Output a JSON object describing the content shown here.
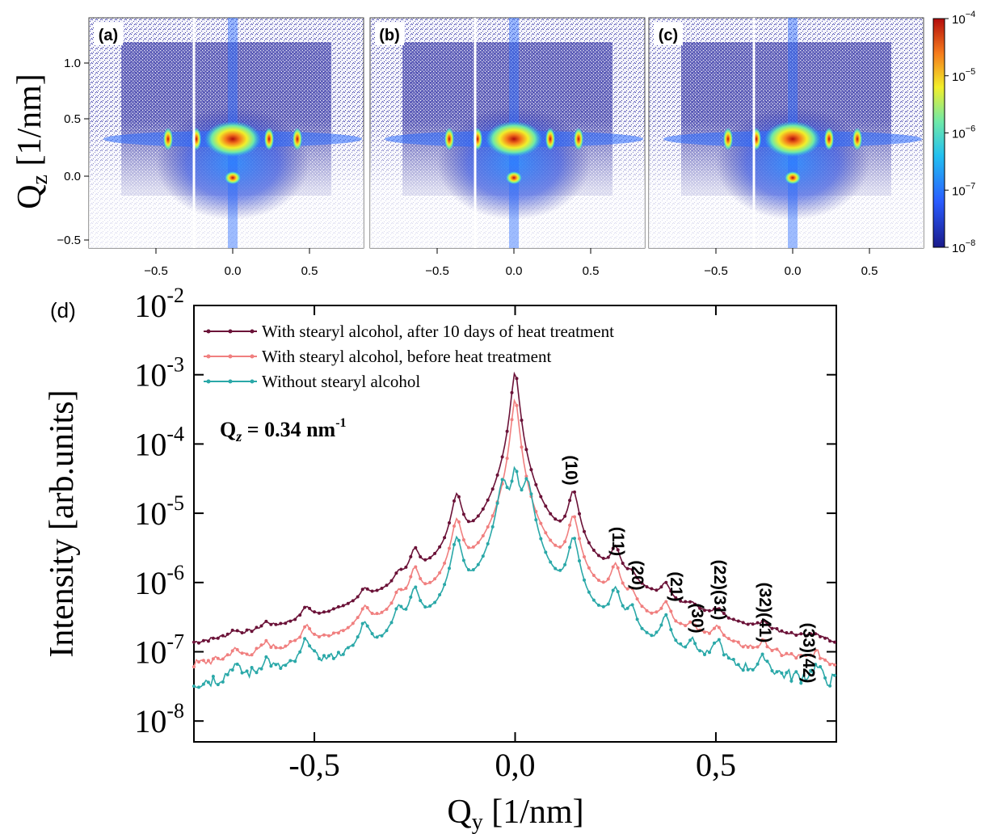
{
  "figure": {
    "maps": [
      {
        "label": "(a)"
      },
      {
        "label": "(b)"
      },
      {
        "label": "(c)"
      }
    ],
    "map_axes": {
      "ylabel_main": "Q",
      "ylabel_sub": "z",
      "ylabel_unit": " [1/nm]",
      "y_ticks": [
        "1.0",
        "0.5",
        "0.0",
        "−0.5"
      ],
      "x_ticks": [
        "−0.5",
        "0.0",
        "0.5"
      ]
    },
    "colorbar": {
      "scale": "log",
      "range": [
        1e-08,
        0.0001
      ],
      "ticks": [
        {
          "base": "10",
          "exp": "−4"
        },
        {
          "base": "10",
          "exp": "−5"
        },
        {
          "base": "10",
          "exp": "−6"
        },
        {
          "base": "10",
          "exp": "−7"
        },
        {
          "base": "10",
          "exp": "−8"
        }
      ],
      "colors": [
        "#1a1a8a",
        "#2a5cff",
        "#22c0f0",
        "#6fe9a8",
        "#f2ef2a",
        "#f57a1c",
        "#b30c0c"
      ]
    },
    "panel_d_label": "(d)"
  },
  "chart_data": {
    "type": "line",
    "xlabel_main": "Q",
    "xlabel_sub": "y",
    "xlabel_unit": " [1/nm]",
    "ylabel": "Intensity [arb.units]",
    "xlim": [
      -0.8,
      0.8
    ],
    "ylim": [
      5e-09,
      0.01
    ],
    "yscale": "log",
    "x_ticks": [
      "-0,5",
      "0,0",
      "0,5"
    ],
    "y_ticks": [
      {
        "base": "10",
        "exp": "-2"
      },
      {
        "base": "10",
        "exp": "-3"
      },
      {
        "base": "10",
        "exp": "-4"
      },
      {
        "base": "10",
        "exp": "-5"
      },
      {
        "base": "10",
        "exp": "-6"
      },
      {
        "base": "10",
        "exp": "-7"
      },
      {
        "base": "10",
        "exp": "-8"
      }
    ],
    "annotation": {
      "main": "Q",
      "sub": "z",
      "rest": " = 0.34 nm",
      "sup": "-1"
    },
    "legend_position": "top-left",
    "peak_labels": [
      "(10)",
      "(11)",
      "(20)",
      "(21)",
      "(30)",
      "(22)(31)",
      "(32)(41)",
      "(33)(42)"
    ],
    "series": [
      {
        "name": "With stearyl alcohol, after 10 days of heat treatment",
        "color": "#6b1238",
        "peaks": [
          [
            0.0,
            0.0011
          ],
          [
            0.145,
            1.8e-05
          ],
          [
            -0.145,
            1.6e-05
          ],
          [
            0.25,
            2e-06
          ],
          [
            -0.25,
            1.8e-06
          ],
          [
            0.29,
            4e-07
          ],
          [
            -0.29,
            4e-07
          ],
          [
            0.375,
            4e-07
          ],
          [
            -0.375,
            2.5e-07
          ],
          [
            0.44,
            9e-08
          ],
          [
            0.505,
            1e-07
          ],
          [
            -0.52,
            1.5e-07
          ],
          [
            0.62,
            6e-08
          ],
          [
            -0.62,
            5e-08
          ],
          [
            0.75,
            3.5e-08
          ],
          [
            -0.7,
            3e-08
          ]
        ]
      },
      {
        "name": "With stearyl alcohol, before heat treatment",
        "color": "#f07f7f",
        "peaks": [
          [
            0.0,
            0.00045
          ],
          [
            0.145,
            8e-06
          ],
          [
            -0.145,
            7e-06
          ],
          [
            0.25,
            1.3e-06
          ],
          [
            -0.25,
            1.1e-06
          ],
          [
            0.29,
            3e-07
          ],
          [
            -0.29,
            3e-07
          ],
          [
            0.375,
            2.7e-07
          ],
          [
            -0.375,
            2e-07
          ],
          [
            0.44,
            7e-08
          ],
          [
            0.505,
            9e-08
          ],
          [
            -0.52,
            1.1e-07
          ],
          [
            0.62,
            4e-08
          ],
          [
            -0.62,
            3.5e-08
          ],
          [
            0.75,
            2.5e-08
          ],
          [
            -0.7,
            2.5e-08
          ]
        ]
      },
      {
        "name": "Without stearyl alcohol",
        "color": "#2aa8a8",
        "peaks": [
          [
            0.0,
            4e-05
          ],
          [
            0.03,
            2.8e-05
          ],
          [
            -0.03,
            2.8e-05
          ],
          [
            0.145,
            4e-06
          ],
          [
            -0.145,
            4e-06
          ],
          [
            0.25,
            6e-07
          ],
          [
            -0.25,
            6e-07
          ],
          [
            0.29,
            2.5e-07
          ],
          [
            -0.29,
            2.5e-07
          ],
          [
            0.375,
            2.2e-07
          ],
          [
            -0.375,
            1.6e-07
          ],
          [
            0.44,
            6e-08
          ],
          [
            0.505,
            8e-08
          ],
          [
            -0.52,
            9e-08
          ],
          [
            0.62,
            3.5e-08
          ],
          [
            -0.62,
            3e-08
          ],
          [
            0.75,
            2.2e-08
          ],
          [
            -0.7,
            2.2e-08
          ]
        ]
      }
    ]
  }
}
